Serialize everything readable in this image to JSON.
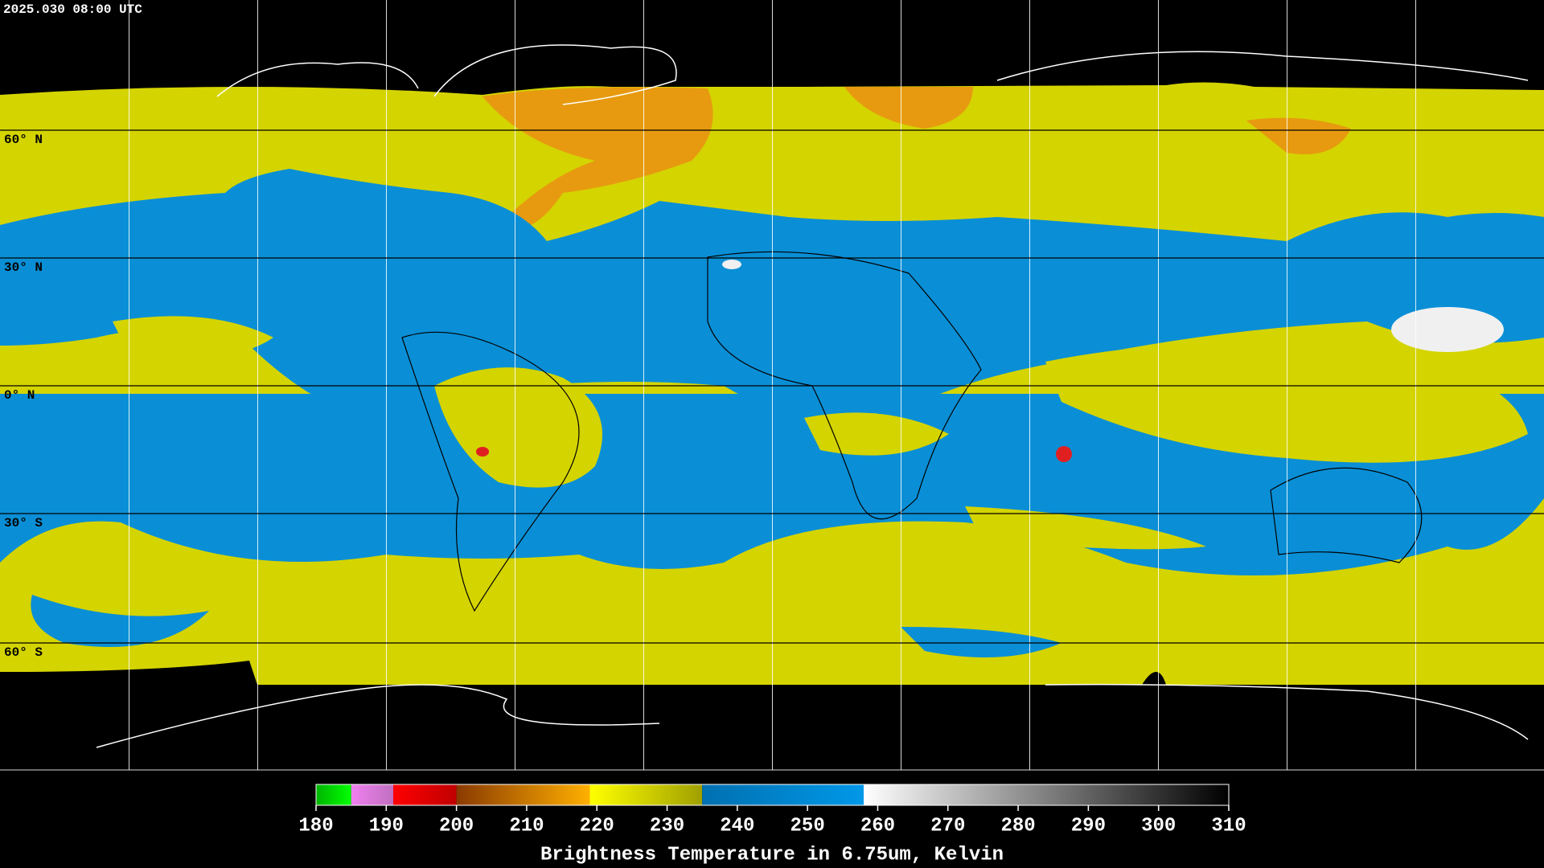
{
  "header": {
    "title": "2025.030 08:00 UTC"
  },
  "map": {
    "latitude_labels": [
      "60° N",
      "30° N",
      "0° N",
      "30° S",
      "60° S"
    ]
  },
  "colorbar": {
    "range": [
      180,
      310
    ],
    "ticks": [
      180,
      190,
      200,
      210,
      220,
      230,
      240,
      250,
      260,
      270,
      280,
      290,
      300,
      310
    ],
    "label": "Brightness Temperature in 6.75um, Kelvin",
    "segments": [
      {
        "from": 180,
        "to": 185,
        "start": "#00b400",
        "end": "#00ff00"
      },
      {
        "from": 185,
        "to": 191,
        "start": "#f080f0",
        "end": "#c070c0"
      },
      {
        "from": 191,
        "to": 200,
        "start": "#ff0000",
        "end": "#c00000"
      },
      {
        "from": 200,
        "to": 219,
        "start": "#8a3a00",
        "end": "#ffb000"
      },
      {
        "from": 219,
        "to": 235,
        "start": "#ffff00",
        "end": "#a0a000"
      },
      {
        "from": 235,
        "to": 258,
        "start": "#0070b0",
        "end": "#0098e8"
      },
      {
        "from": 258,
        "to": 310,
        "start": "#ffffff",
        "end": "#000000"
      }
    ]
  }
}
